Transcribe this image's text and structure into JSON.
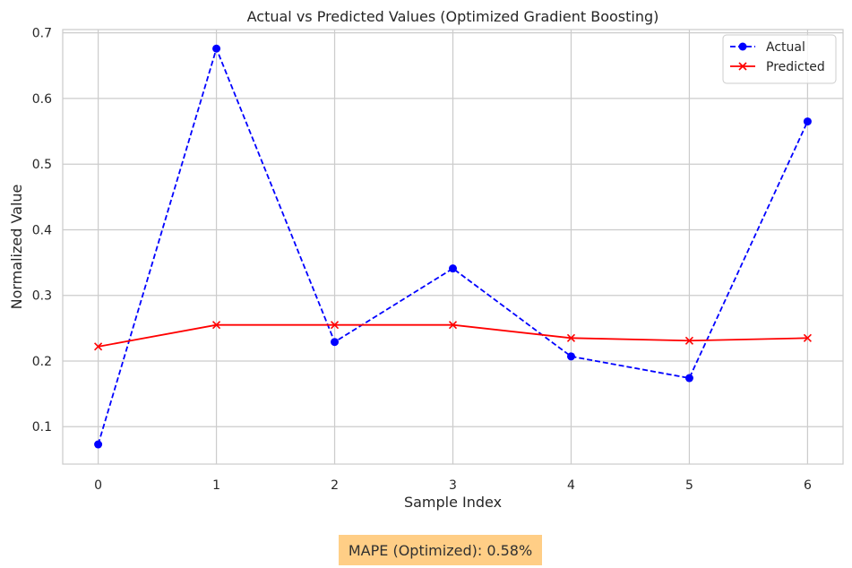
{
  "chart_data": {
    "type": "line",
    "title": "Actual vs Predicted Values (Optimized Gradient Boosting)",
    "xlabel": "Sample Index",
    "ylabel": "Normalized Value",
    "x": [
      0,
      1,
      2,
      3,
      4,
      5,
      6
    ],
    "xlim": [
      -0.3,
      6.3
    ],
    "ylim": [
      0.043,
      0.705
    ],
    "xticks": [
      "0",
      "1",
      "2",
      "3",
      "4",
      "5",
      "6"
    ],
    "yticks": [
      "0.1",
      "0.2",
      "0.3",
      "0.4",
      "0.5",
      "0.6",
      "0.7"
    ],
    "ytick_values": [
      0.1,
      0.2,
      0.3,
      0.4,
      0.5,
      0.6,
      0.7
    ],
    "grid": true,
    "legend_position": "top-right",
    "series": [
      {
        "name": "Actual",
        "values": [
          0.073,
          0.676,
          0.229,
          0.341,
          0.207,
          0.174,
          0.565
        ],
        "color": "#0000ff",
        "style": "dashed",
        "marker": "circle"
      },
      {
        "name": "Predicted",
        "values": [
          0.222,
          0.255,
          0.255,
          0.255,
          0.235,
          0.231,
          0.235
        ],
        "color": "#ff0000",
        "style": "solid",
        "marker": "x"
      }
    ]
  },
  "annotation": {
    "text": "MAPE (Optimized): 0.58%",
    "background": "#ffcc80"
  }
}
